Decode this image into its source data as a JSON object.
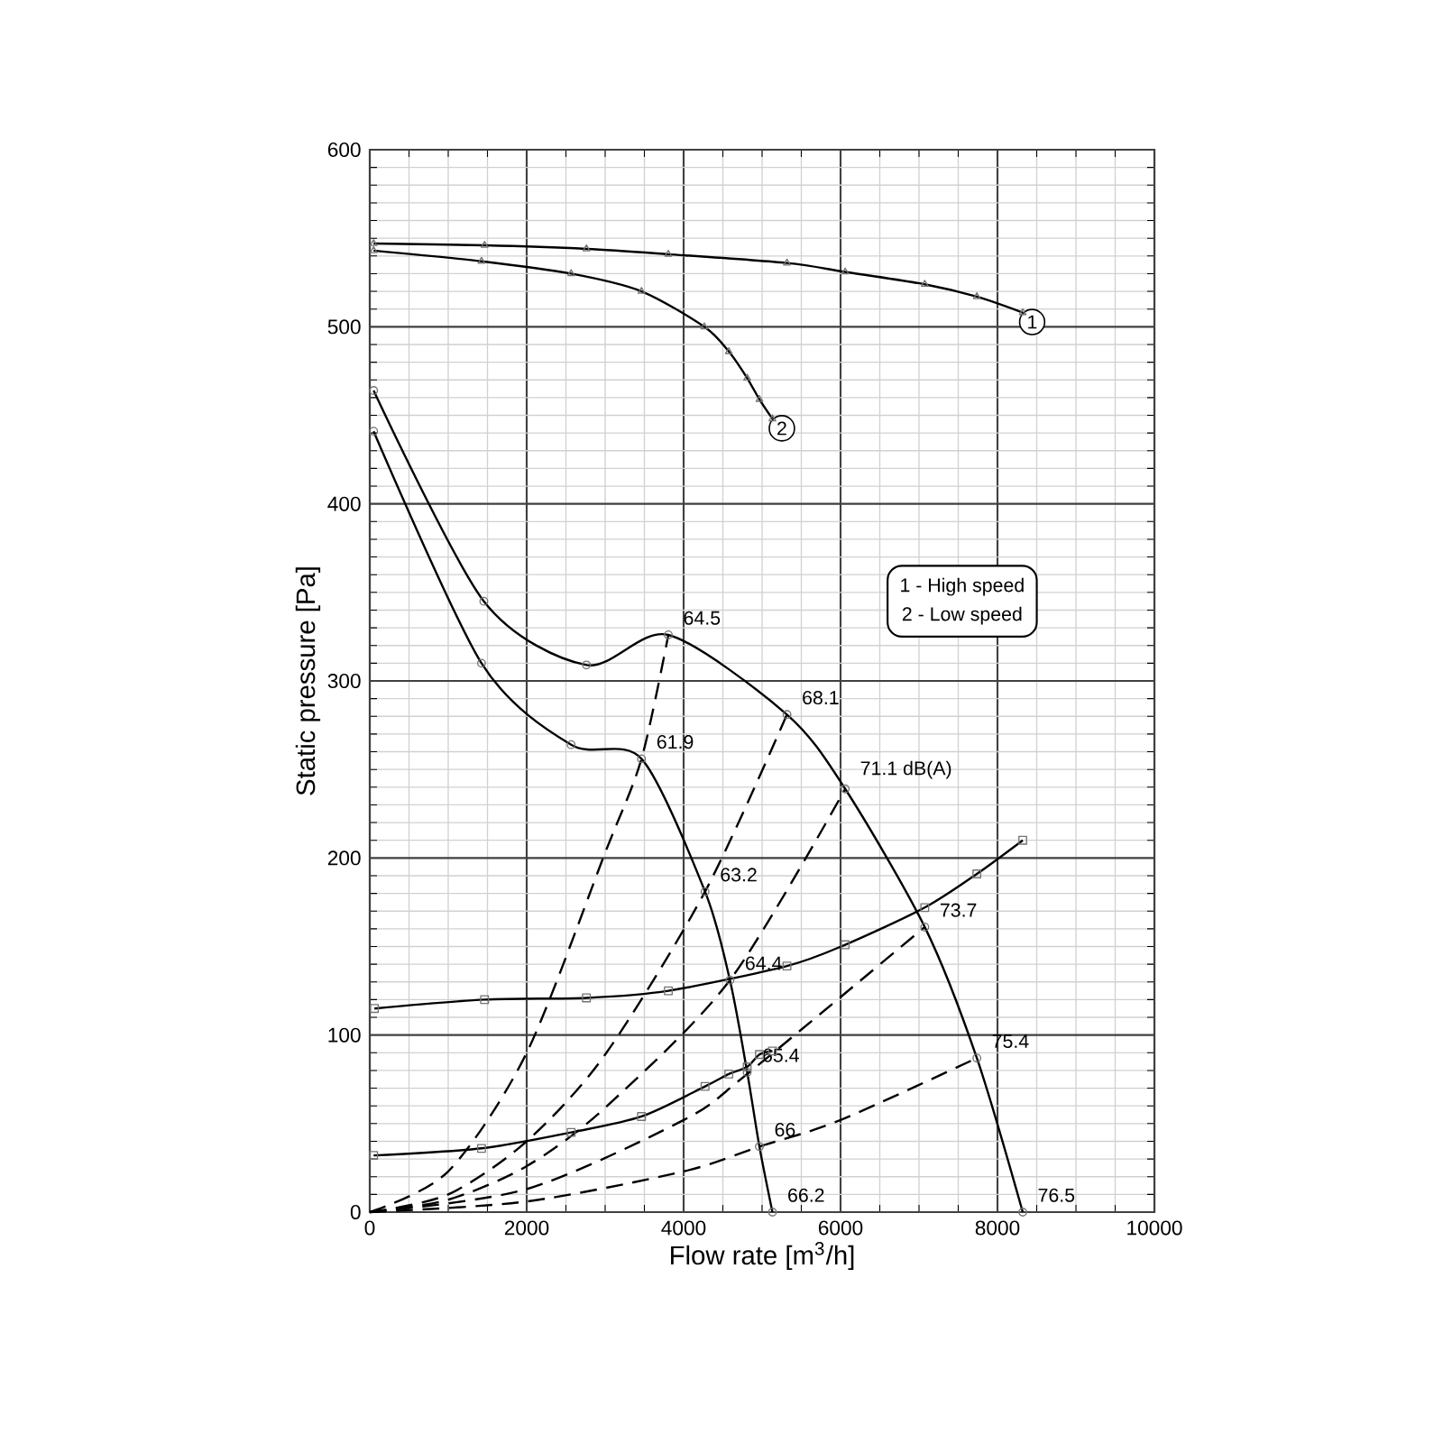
{
  "chart_data": {
    "type": "line",
    "xlabel": "Flow rate [m$^{3}$/h]",
    "ylabel": "Static pressure [Pa]",
    "xlim": [
      0,
      10000
    ],
    "ylim": [
      0,
      600
    ],
    "xticks": [
      0,
      2000,
      4000,
      6000,
      8000,
      10000
    ],
    "yticks": [
      0,
      100,
      200,
      300,
      400,
      500,
      600
    ],
    "grid": true,
    "series": [
      {
        "name": "1",
        "color": "#000000",
        "marker": "triangle",
        "x": [
          49,
          1463,
          2761,
          3805,
          5317,
          6059,
          7073,
          7737,
          8322
        ],
        "values": [
          547,
          546,
          544,
          541,
          536,
          531,
          524,
          517,
          508
        ]
      },
      {
        "name": "2",
        "color": "#000000",
        "marker": "triangle",
        "x": [
          49,
          1424,
          2566,
          3463,
          4263,
          4576,
          4810,
          4966,
          5132
        ],
        "values": [
          543,
          537,
          530,
          520,
          500,
          486,
          471,
          459,
          448
        ]
      },
      {
        "color": "#000000",
        "marker": "circle",
        "x": [
          49,
          1454,
          2761,
          3805,
          5317,
          6059,
          7073,
          7737,
          8322
        ],
        "values": [
          464,
          345,
          309,
          326,
          281,
          239,
          161,
          87,
          0
        ]
      },
      {
        "color": "#000000",
        "marker": "circle",
        "x": [
          49,
          1424,
          2566,
          3463,
          4273,
          4590,
          4810,
          4966,
          5132
        ],
        "values": [
          441,
          310,
          264,
          256,
          181,
          131,
          79,
          37,
          0
        ]
      },
      {
        "color": "#000000",
        "marker": "square",
        "x": [
          59,
          1463,
          2761,
          3805,
          5317,
          6059,
          7073,
          7737,
          8322
        ],
        "values": [
          115,
          120,
          121,
          125,
          139,
          151,
          172,
          191,
          210
        ]
      },
      {
        "color": "#000000",
        "marker": "square",
        "x": [
          49,
          1424,
          2566,
          3463,
          4273,
          4576,
          4810,
          4966,
          5132
        ],
        "values": [
          32,
          36,
          45,
          54,
          71,
          78,
          82,
          89,
          91
        ]
      },
      {
        "color": "#000000",
        "marker": "none",
        "line_style": "dashed",
        "x": [
          0,
          1000,
          2000,
          3000,
          3463,
          3805
        ],
        "values": [
          0,
          23,
          90,
          203,
          256,
          326
        ]
      },
      {
        "color": "#000000",
        "marker": "none",
        "line_style": "dashed",
        "x": [
          0,
          1000,
          2000,
          3000,
          4273,
          5317
        ],
        "values": [
          0,
          10,
          40,
          89,
          181,
          281
        ]
      },
      {
        "color": "#000000",
        "marker": "none",
        "line_style": "dashed",
        "x": [
          0,
          1000,
          2000,
          3000,
          4590,
          6059
        ],
        "values": [
          0,
          7,
          26,
          59,
          131,
          239
        ]
      },
      {
        "color": "#000000",
        "marker": "none",
        "line_style": "dashed",
        "x": [
          0,
          2000,
          4000,
          4810,
          7073
        ],
        "values": [
          0,
          13,
          52,
          78,
          161
        ]
      },
      {
        "color": "#000000",
        "marker": "none",
        "line_style": "dashed",
        "x": [
          0,
          2000,
          4000,
          4966,
          6000,
          7737
        ],
        "values": [
          0,
          6,
          23,
          37,
          52,
          87
        ]
      }
    ],
    "annotations": [
      {
        "text": "64.5",
        "x": 3805,
        "y": 326
      },
      {
        "text": "68.1",
        "x": 5317,
        "y": 281
      },
      {
        "text": "71.1 dB(A)",
        "x": 6059,
        "y": 239
      },
      {
        "text": "73.7",
        "x": 7073,
        "y": 161
      },
      {
        "text": "75.4",
        "x": 7737,
        "y": 87
      },
      {
        "text": "76.5",
        "x": 8322,
        "y": 0
      },
      {
        "text": "61.9",
        "x": 3463,
        "y": 256
      },
      {
        "text": "63.2",
        "x": 4273,
        "y": 181
      },
      {
        "text": "64.4",
        "x": 4590,
        "y": 131
      },
      {
        "text": "65.4",
        "x": 4810,
        "y": 79
      },
      {
        "text": "66",
        "x": 4966,
        "y": 37
      },
      {
        "text": "66.2",
        "x": 5132,
        "y": 0
      },
      "1 - High speed",
      "2 - Low speed"
    ]
  }
}
